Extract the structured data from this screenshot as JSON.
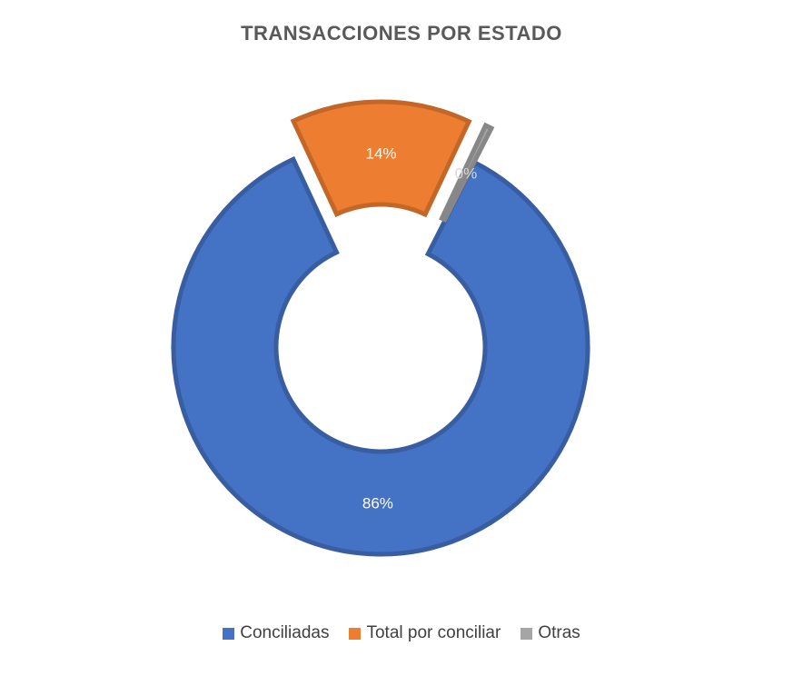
{
  "chart_data": {
    "type": "pie",
    "variant": "doughnut",
    "title": "TRANSACCIONES POR ESTADO",
    "categories": [
      "Conciliadas",
      "Total por conciliar",
      "Otras"
    ],
    "values": [
      86,
      14,
      0.5
    ],
    "data_labels": [
      "86%",
      "14%",
      "0%"
    ],
    "colors": [
      "#4472C4",
      "#ED7D31",
      "#A5A5A5"
    ],
    "exploded": [
      "Total por conciliar",
      "Otras"
    ],
    "legend_position": "bottom"
  }
}
